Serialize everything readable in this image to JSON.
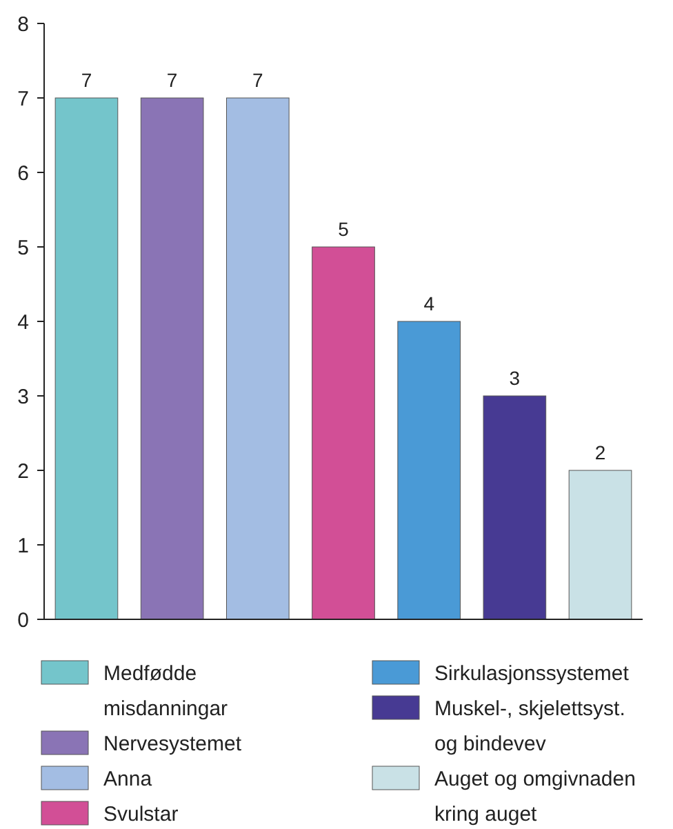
{
  "chart_data": {
    "type": "bar",
    "categories": [
      null
    ],
    "series": [
      {
        "name": "Medfødde misdanningar",
        "color": "#74c5cb",
        "values": [
          7
        ]
      },
      {
        "name": "Nervesystemet",
        "color": "#8a74b5",
        "values": [
          7
        ]
      },
      {
        "name": "Anna",
        "color": "#a3bde3",
        "values": [
          7
        ]
      },
      {
        "name": "Svulstar",
        "color": "#d24f96",
        "values": [
          5
        ]
      },
      {
        "name": "Sirkulasjonssystemet",
        "color": "#4a9ad6",
        "values": [
          4
        ]
      },
      {
        "name": "Muskel-, skjelettsyst. og bindevev",
        "color": "#473a93",
        "values": [
          3
        ]
      },
      {
        "name": "Auget og omgivnaden kring auget",
        "color": "#c9e1e6",
        "values": [
          2
        ]
      }
    ],
    "ylim": [
      0,
      8
    ],
    "yticks": [
      0,
      1,
      2,
      3,
      4,
      5,
      6,
      7,
      8
    ],
    "data_labels": true,
    "legend": "bottom",
    "tick_labels": "y",
    "grid": false
  }
}
